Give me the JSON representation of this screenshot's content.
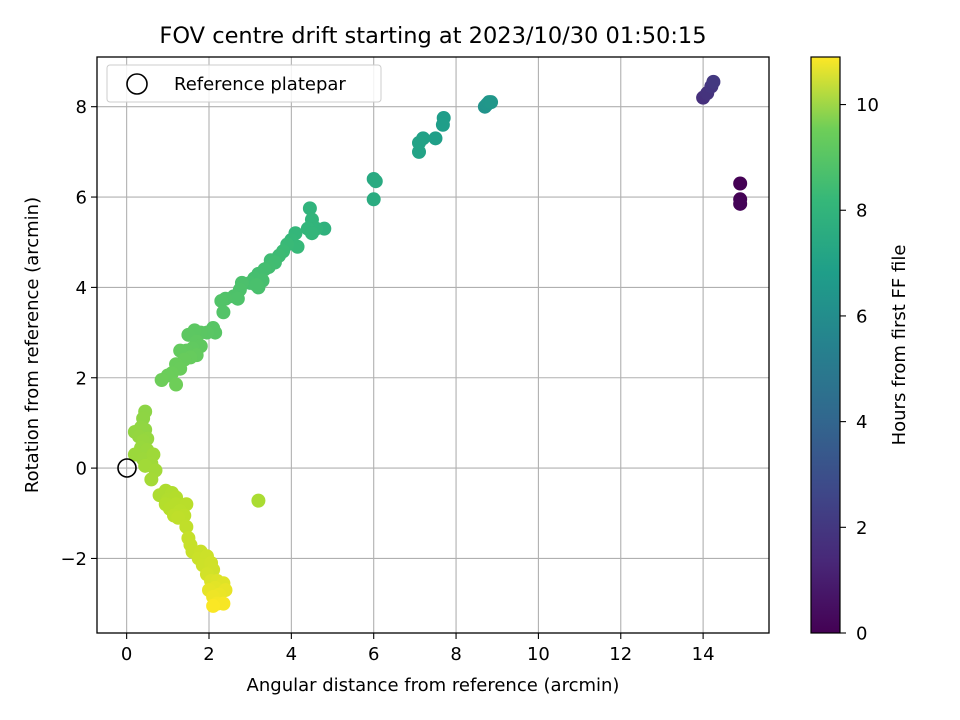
{
  "chart_data": {
    "type": "scatter",
    "title": "FOV centre drift starting at 2023/10/30 01:50:15",
    "xlabel": "Angular distance from reference (arcmin)",
    "ylabel": "Rotation from reference (arcmin)",
    "xlim": [
      -0.72,
      15.6
    ],
    "ylim": [
      -3.65,
      9.1
    ],
    "xticks": [
      0,
      2,
      4,
      6,
      8,
      10,
      12,
      14
    ],
    "yticks": [
      -2,
      0,
      2,
      4,
      6,
      8
    ],
    "grid": true,
    "legend": {
      "position": "top-left",
      "entries": [
        "Reference platepar"
      ]
    },
    "reference_point": {
      "name": "Reference platepar",
      "x": 0,
      "y": 0
    },
    "colorbar": {
      "label": "Hours from first FF file",
      "range": [
        0,
        10.9
      ],
      "ticks": [
        0,
        2,
        4,
        6,
        8,
        10
      ],
      "colormap": "viridis"
    },
    "series": [
      {
        "values": [
          {
            "x": 14.9,
            "y": 6.3,
            "c": 0.0
          },
          {
            "x": 14.9,
            "y": 5.95,
            "c": 0.05
          },
          {
            "x": 14.9,
            "y": 5.85,
            "c": 0.1
          },
          {
            "x": 14.0,
            "y": 8.2,
            "c": 1.5
          },
          {
            "x": 14.1,
            "y": 8.3,
            "c": 1.6
          },
          {
            "x": 14.2,
            "y": 8.45,
            "c": 1.7
          },
          {
            "x": 14.25,
            "y": 8.55,
            "c": 1.8
          },
          {
            "x": 8.7,
            "y": 8.0,
            "c": 5.6
          },
          {
            "x": 8.75,
            "y": 8.05,
            "c": 5.65
          },
          {
            "x": 8.8,
            "y": 8.1,
            "c": 5.7
          },
          {
            "x": 8.85,
            "y": 8.1,
            "c": 5.75
          },
          {
            "x": 7.7,
            "y": 7.75,
            "c": 6.0
          },
          {
            "x": 7.68,
            "y": 7.6,
            "c": 6.05
          },
          {
            "x": 7.5,
            "y": 7.3,
            "c": 6.1
          },
          {
            "x": 7.2,
            "y": 7.3,
            "c": 6.2
          },
          {
            "x": 7.1,
            "y": 7.2,
            "c": 6.25
          },
          {
            "x": 7.1,
            "y": 7.0,
            "c": 6.3
          },
          {
            "x": 6.0,
            "y": 6.4,
            "c": 6.6
          },
          {
            "x": 6.05,
            "y": 6.35,
            "c": 6.65
          },
          {
            "x": 6.0,
            "y": 5.95,
            "c": 6.7
          },
          {
            "x": 4.8,
            "y": 5.3,
            "c": 7.0
          },
          {
            "x": 4.45,
            "y": 5.75,
            "c": 7.05
          },
          {
            "x": 4.5,
            "y": 5.5,
            "c": 7.1
          },
          {
            "x": 4.6,
            "y": 5.3,
            "c": 7.12
          },
          {
            "x": 4.4,
            "y": 5.3,
            "c": 7.15
          },
          {
            "x": 4.5,
            "y": 5.2,
            "c": 7.18
          },
          {
            "x": 4.1,
            "y": 5.2,
            "c": 7.2
          },
          {
            "x": 4.0,
            "y": 5.05,
            "c": 7.25
          },
          {
            "x": 4.15,
            "y": 4.9,
            "c": 7.3
          },
          {
            "x": 3.9,
            "y": 4.95,
            "c": 7.35
          },
          {
            "x": 3.8,
            "y": 4.8,
            "c": 7.4
          },
          {
            "x": 3.7,
            "y": 4.7,
            "c": 7.45
          },
          {
            "x": 3.5,
            "y": 4.6,
            "c": 7.5
          },
          {
            "x": 3.6,
            "y": 4.55,
            "c": 7.52
          },
          {
            "x": 3.45,
            "y": 4.45,
            "c": 7.55
          },
          {
            "x": 3.35,
            "y": 4.4,
            "c": 7.58
          },
          {
            "x": 3.2,
            "y": 4.3,
            "c": 7.6
          },
          {
            "x": 3.1,
            "y": 4.2,
            "c": 7.62
          },
          {
            "x": 3.3,
            "y": 4.15,
            "c": 7.65
          },
          {
            "x": 3.0,
            "y": 4.1,
            "c": 7.68
          },
          {
            "x": 3.2,
            "y": 4.0,
            "c": 7.7
          },
          {
            "x": 3.15,
            "y": 4.05,
            "c": 7.72
          },
          {
            "x": 2.8,
            "y": 4.1,
            "c": 7.75
          },
          {
            "x": 2.75,
            "y": 3.95,
            "c": 7.78
          },
          {
            "x": 2.6,
            "y": 3.8,
            "c": 7.8
          },
          {
            "x": 2.7,
            "y": 3.75,
            "c": 7.82
          },
          {
            "x": 2.4,
            "y": 3.75,
            "c": 7.85
          },
          {
            "x": 2.3,
            "y": 3.7,
            "c": 7.88
          },
          {
            "x": 2.35,
            "y": 3.45,
            "c": 7.9
          },
          {
            "x": 2.1,
            "y": 3.1,
            "c": 8.0
          },
          {
            "x": 2.15,
            "y": 3.0,
            "c": 8.02
          },
          {
            "x": 1.95,
            "y": 3.0,
            "c": 8.05
          },
          {
            "x": 1.8,
            "y": 3.0,
            "c": 8.07
          },
          {
            "x": 1.65,
            "y": 3.05,
            "c": 8.1
          },
          {
            "x": 1.5,
            "y": 2.95,
            "c": 8.12
          },
          {
            "x": 1.7,
            "y": 2.8,
            "c": 8.15
          },
          {
            "x": 1.8,
            "y": 2.7,
            "c": 8.17
          },
          {
            "x": 1.6,
            "y": 2.65,
            "c": 8.2
          },
          {
            "x": 1.45,
            "y": 2.6,
            "c": 8.22
          },
          {
            "x": 1.3,
            "y": 2.6,
            "c": 8.25
          },
          {
            "x": 1.7,
            "y": 2.5,
            "c": 8.27
          },
          {
            "x": 1.55,
            "y": 2.45,
            "c": 8.3
          },
          {
            "x": 1.4,
            "y": 2.4,
            "c": 8.32
          },
          {
            "x": 1.2,
            "y": 2.3,
            "c": 8.35
          },
          {
            "x": 1.3,
            "y": 2.2,
            "c": 8.37
          },
          {
            "x": 1.1,
            "y": 2.1,
            "c": 8.4
          },
          {
            "x": 1.0,
            "y": 2.05,
            "c": 8.42
          },
          {
            "x": 0.85,
            "y": 1.95,
            "c": 8.45
          },
          {
            "x": 1.2,
            "y": 1.85,
            "c": 8.47
          },
          {
            "x": 0.45,
            "y": 1.25,
            "c": 9.0
          },
          {
            "x": 0.4,
            "y": 1.1,
            "c": 9.02
          },
          {
            "x": 0.35,
            "y": 0.9,
            "c": 9.05
          },
          {
            "x": 0.45,
            "y": 0.85,
            "c": 9.07
          },
          {
            "x": 0.2,
            "y": 0.8,
            "c": 9.1
          },
          {
            "x": 0.3,
            "y": 0.7,
            "c": 9.12
          },
          {
            "x": 0.5,
            "y": 0.65,
            "c": 9.15
          },
          {
            "x": 0.4,
            "y": 0.6,
            "c": 9.17
          },
          {
            "x": 0.35,
            "y": 0.45,
            "c": 9.2
          },
          {
            "x": 0.5,
            "y": 0.4,
            "c": 9.22
          },
          {
            "x": 0.2,
            "y": 0.3,
            "c": 9.25
          },
          {
            "x": 0.4,
            "y": 0.2,
            "c": 9.27
          },
          {
            "x": 0.65,
            "y": 0.3,
            "c": 9.3
          },
          {
            "x": 0.6,
            "y": 0.1,
            "c": 9.32
          },
          {
            "x": 0.45,
            "y": 0.05,
            "c": 9.35
          },
          {
            "x": 0.7,
            "y": -0.05,
            "c": 9.37
          },
          {
            "x": 0.6,
            "y": -0.25,
            "c": 9.4
          },
          {
            "x": 3.2,
            "y": -0.72,
            "c": 9.5
          },
          {
            "x": 0.8,
            "y": -0.6,
            "c": 9.55
          },
          {
            "x": 0.95,
            "y": -0.5,
            "c": 9.57
          },
          {
            "x": 1.1,
            "y": -0.55,
            "c": 9.6
          },
          {
            "x": 1.0,
            "y": -0.7,
            "c": 9.62
          },
          {
            "x": 1.2,
            "y": -0.65,
            "c": 9.65
          },
          {
            "x": 0.95,
            "y": -0.8,
            "c": 9.67
          },
          {
            "x": 1.05,
            "y": -0.9,
            "c": 9.7
          },
          {
            "x": 1.2,
            "y": -0.8,
            "c": 9.72
          },
          {
            "x": 1.45,
            "y": -0.8,
            "c": 9.75
          },
          {
            "x": 1.3,
            "y": -0.95,
            "c": 9.77
          },
          {
            "x": 1.15,
            "y": -1.05,
            "c": 9.8
          },
          {
            "x": 1.4,
            "y": -1.05,
            "c": 9.82
          },
          {
            "x": 1.25,
            "y": -1.1,
            "c": 9.85
          },
          {
            "x": 1.45,
            "y": -1.3,
            "c": 9.87
          },
          {
            "x": 1.5,
            "y": -1.55,
            "c": 9.95
          },
          {
            "x": 1.55,
            "y": -1.7,
            "c": 9.97
          },
          {
            "x": 1.6,
            "y": -1.85,
            "c": 10.0
          },
          {
            "x": 1.8,
            "y": -1.85,
            "c": 10.02
          },
          {
            "x": 1.75,
            "y": -2.0,
            "c": 10.05
          },
          {
            "x": 1.95,
            "y": -1.95,
            "c": 10.07
          },
          {
            "x": 1.85,
            "y": -2.15,
            "c": 10.1
          },
          {
            "x": 2.05,
            "y": -2.1,
            "c": 10.12
          },
          {
            "x": 2.1,
            "y": -2.25,
            "c": 10.15
          },
          {
            "x": 1.95,
            "y": -2.35,
            "c": 10.17
          },
          {
            "x": 2.05,
            "y": -2.5,
            "c": 10.3
          },
          {
            "x": 2.2,
            "y": -2.5,
            "c": 10.35
          },
          {
            "x": 2.35,
            "y": -2.55,
            "c": 10.4
          },
          {
            "x": 2.15,
            "y": -2.65,
            "c": 10.45
          },
          {
            "x": 2.0,
            "y": -2.7,
            "c": 10.5
          },
          {
            "x": 2.4,
            "y": -2.7,
            "c": 10.55
          },
          {
            "x": 2.25,
            "y": -2.8,
            "c": 10.6
          },
          {
            "x": 2.1,
            "y": -2.85,
            "c": 10.65
          },
          {
            "x": 2.2,
            "y": -3.0,
            "c": 10.75
          },
          {
            "x": 2.35,
            "y": -3.0,
            "c": 10.8
          },
          {
            "x": 2.1,
            "y": -3.05,
            "c": 10.85
          }
        ]
      }
    ]
  }
}
